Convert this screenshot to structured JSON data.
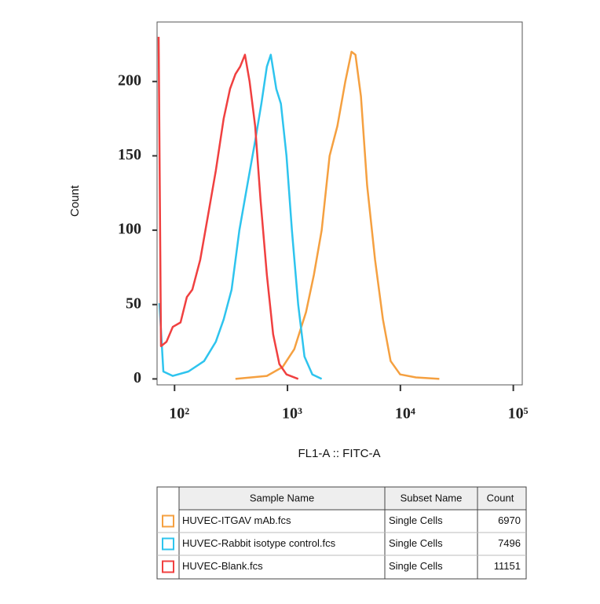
{
  "chart_data": {
    "type": "line",
    "xscale": "log",
    "x_label": "FL1-A :: FITC-A",
    "y_label": "Count",
    "xlim": [
      70,
      120000
    ],
    "ylim": [
      -4,
      240
    ],
    "xticks": [
      {
        "value": 100,
        "label": "10²"
      },
      {
        "value": 1000,
        "label": "10³"
      },
      {
        "value": 10000,
        "label": "10⁴"
      },
      {
        "value": 100000,
        "label": "10⁵"
      }
    ],
    "yticks": [
      0,
      50,
      100,
      150,
      200
    ],
    "table_headers": [
      "Sample Name",
      "Subset Name",
      "Count"
    ],
    "series": [
      {
        "name": "HUVEC-ITGAV mAb.fcs",
        "subset": "Single Cells",
        "count": "6970",
        "color": "#f5a040",
        "x": [
          346,
          657,
          904,
          1148,
          1460,
          1715,
          2010,
          2360,
          2767,
          3250,
          3690,
          4000,
          4470,
          5080,
          5970,
          7000,
          8200,
          9950,
          13700,
          22100
        ],
        "values": [
          0,
          2,
          8,
          20,
          45,
          70,
          100,
          150,
          170,
          200,
          220,
          218,
          190,
          130,
          80,
          40,
          12,
          3,
          1,
          0
        ]
      },
      {
        "name": "HUVEC-Rabbit isotype control.fcs",
        "subset": "Single Cells",
        "count": "7496",
        "color": "#2ec4ee",
        "x": [
          73.4,
          79.6,
          96.4,
          132.7,
          182.7,
          232,
          272,
          320,
          375,
          440,
          517,
          587,
          657,
          711,
          796,
          875,
          980,
          1094,
          1245,
          1415,
          1660,
          2010
        ],
        "values": [
          51,
          5,
          2,
          5,
          12,
          25,
          40,
          60,
          100,
          130,
          160,
          185,
          210,
          218,
          195,
          185,
          150,
          100,
          50,
          15,
          3,
          0
        ]
      },
      {
        "name": "HUVEC-Blank.fcs",
        "subset": "Single Cells",
        "count": "11151",
        "color": "#f04040",
        "x": [
          72.3,
          75.8,
          84.8,
          96.4,
          113,
          128.5,
          143.7,
          168.7,
          198,
          232,
          272,
          310,
          346,
          381,
          420,
          462,
          517,
          578,
          657,
          746,
          847,
          980,
          1245
        ],
        "values": [
          230,
          22,
          25,
          35,
          38,
          55,
          60,
          80,
          110,
          140,
          175,
          195,
          205,
          210,
          218,
          200,
          170,
          120,
          70,
          30,
          10,
          3,
          0
        ]
      }
    ]
  }
}
